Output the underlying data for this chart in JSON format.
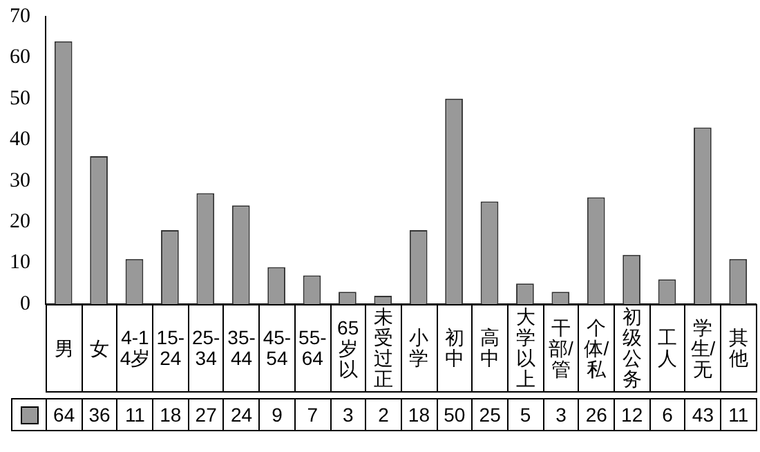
{
  "chart_data": {
    "type": "bar",
    "categories": [
      "男",
      "女",
      "4-14岁",
      "15-24",
      "25-34",
      "35-44",
      "45-54",
      "55-64",
      "65岁以",
      "未受过正",
      "小学",
      "初中",
      "高中",
      "大学以上",
      "干部/管",
      "个体/私",
      "初级公务",
      "工人",
      "学生/无",
      "其他"
    ],
    "values": [
      64,
      36,
      11,
      18,
      27,
      24,
      9,
      7,
      3,
      2,
      18,
      50,
      25,
      5,
      3,
      26,
      12,
      6,
      43,
      11
    ],
    "color": "#999999",
    "ylim": [
      0,
      70
    ],
    "yticks": [
      0,
      10,
      20,
      30,
      40,
      50,
      60,
      70
    ],
    "grid": false,
    "data_labels": true
  }
}
